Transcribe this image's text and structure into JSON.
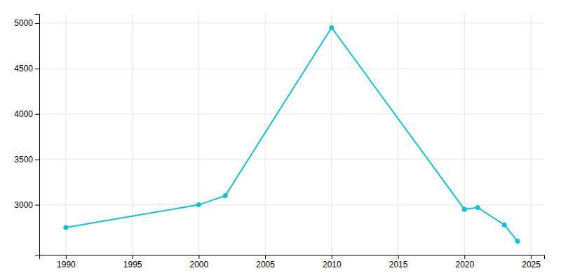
{
  "chart_data": {
    "type": "line",
    "x": [
      1990,
      2000,
      2002,
      2010,
      2020,
      2021,
      2023,
      2024
    ],
    "values": [
      2750,
      3000,
      3100,
      4950,
      2950,
      2970,
      2780,
      2600
    ],
    "color": "#17becf",
    "marker": "circle",
    "xlim": [
      1988,
      2026
    ],
    "ylim": [
      2450,
      5100
    ],
    "xticks": [
      1990,
      1995,
      2000,
      2005,
      2010,
      2015,
      2020,
      2025
    ],
    "yticks": [
      3000,
      3500,
      4000,
      4500,
      5000
    ],
    "grid": true
  }
}
